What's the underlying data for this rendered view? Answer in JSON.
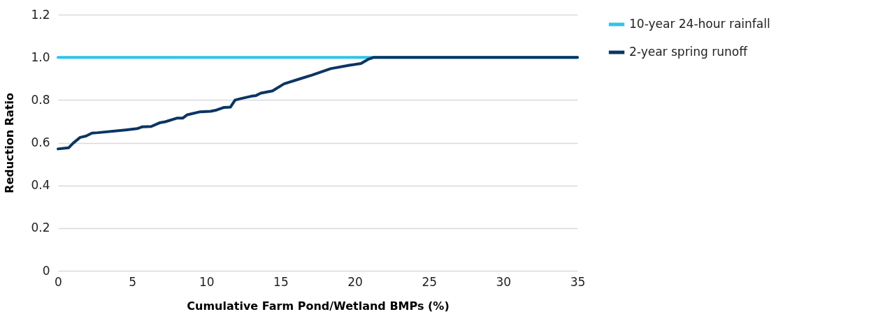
{
  "chart_data": {
    "type": "line",
    "xlabel": "Cumulative Farm Pond/Wetland BMPs (%)",
    "ylabel": "Reduction Ratio",
    "xlim": [
      0,
      35
    ],
    "xticks": [
      0,
      5,
      10,
      15,
      20,
      25,
      30,
      35
    ],
    "ylim": [
      0,
      1.2
    ],
    "yticks": [
      0,
      {
        "value": 0.2,
        "label": "0.2"
      },
      {
        "value": 0.4,
        "label": "0.4"
      },
      {
        "value": 0.6,
        "label": "0.6"
      },
      {
        "value": 0.8,
        "label": "0.8"
      },
      {
        "value": 1,
        "label": "1.0"
      },
      {
        "value": 1.2,
        "label": "1.2"
      }
    ],
    "grid": "y",
    "legend": "right",
    "marker": "none",
    "line_style": "solid",
    "series": [
      {
        "name": "10-year 24-hour rainfall",
        "color": "#2ec4ea",
        "x": [
          0,
          35
        ],
        "values": [
          1.0,
          1.0
        ]
      },
      {
        "name": "2-year spring runoff",
        "color": "#0b3564",
        "x": [
          0,
          0.71,
          1.02,
          1.49,
          1.88,
          2.28,
          2.67,
          4.55,
          5.34,
          5.65,
          6.28,
          6.83,
          7.22,
          8.0,
          8.4,
          8.71,
          9.58,
          10.28,
          10.68,
          11.15,
          11.62,
          11.93,
          12.4,
          13.03,
          13.34,
          13.66,
          14.45,
          15.23,
          16.33,
          17.11,
          18.37,
          19.63,
          20.41,
          20.88,
          21.28,
          35
        ],
        "values": [
          0.571,
          0.576,
          0.598,
          0.625,
          0.631,
          0.645,
          0.647,
          0.66,
          0.666,
          0.674,
          0.676,
          0.693,
          0.698,
          0.715,
          0.715,
          0.731,
          0.745,
          0.747,
          0.753,
          0.765,
          0.767,
          0.8,
          0.808,
          0.818,
          0.821,
          0.832,
          0.843,
          0.876,
          0.9,
          0.917,
          0.947,
          0.963,
          0.971,
          0.99,
          1.0,
          1.0
        ]
      }
    ]
  }
}
